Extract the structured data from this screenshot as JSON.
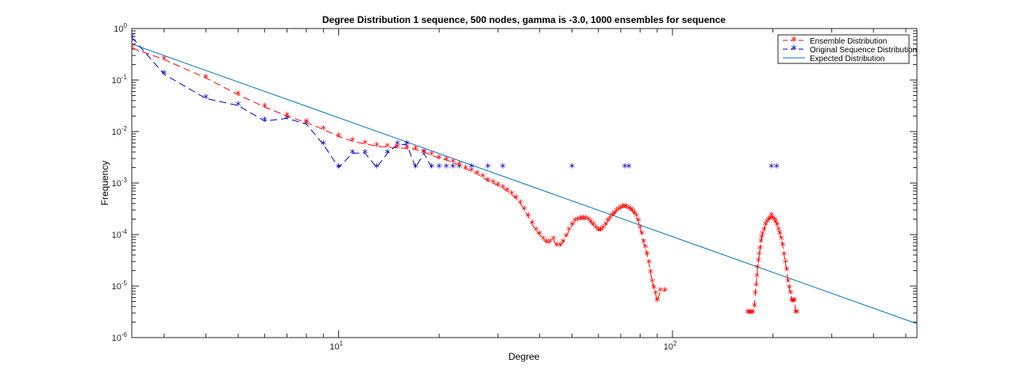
{
  "chart_data": {
    "type": "line",
    "title": "Degree Distribution 1 sequence, 500 nodes, gamma is -3.0, 1000 ensembles for sequence",
    "xlabel": "Degree",
    "ylabel": "Frequency",
    "xscale": "log",
    "yscale": "log",
    "xlim": [
      2.4,
      540
    ],
    "ylim": [
      1e-06,
      1
    ],
    "x_ticks": [
      {
        "value": 10,
        "base": "10",
        "exp": "1"
      },
      {
        "value": 100,
        "base": "10",
        "exp": "2"
      }
    ],
    "y_ticks": [
      {
        "value": 1,
        "base": "10",
        "exp": "0"
      },
      {
        "value": 0.1,
        "base": "10",
        "exp": "-1"
      },
      {
        "value": 0.01,
        "base": "10",
        "exp": "-2"
      },
      {
        "value": 0.001,
        "base": "10",
        "exp": "-3"
      },
      {
        "value": 0.0001,
        "base": "10",
        "exp": "-4"
      },
      {
        "value": 1e-05,
        "base": "10",
        "exp": "-5"
      },
      {
        "value": 1e-06,
        "base": "10",
        "exp": "-6"
      }
    ],
    "legend_position": "top-right",
    "grid": false,
    "series": [
      {
        "name": "Ensemble Distribution",
        "color": "#ff0000",
        "line": "dashed",
        "marker": "star",
        "segments": [
          [
            [
              2.4,
              0.42
            ],
            [
              3,
              0.25
            ],
            [
              4,
              0.11
            ],
            [
              5,
              0.052
            ],
            [
              6,
              0.03
            ],
            [
              7,
              0.02
            ],
            [
              8,
              0.015
            ],
            [
              9,
              0.011
            ],
            [
              10,
              0.008
            ],
            [
              11,
              0.0065
            ],
            [
              12,
              0.0058
            ],
            [
              13,
              0.0052
            ],
            [
              14,
              0.005
            ],
            [
              15,
              0.0048
            ],
            [
              16,
              0.0047
            ],
            [
              17,
              0.0045
            ],
            [
              18,
              0.004
            ],
            [
              19,
              0.0035
            ],
            [
              20,
              0.003
            ],
            [
              21,
              0.0028
            ],
            [
              22,
              0.0025
            ],
            [
              23,
              0.0022
            ],
            [
              24,
              0.0019
            ],
            [
              25,
              0.0017
            ],
            [
              26,
              0.0015
            ],
            [
              27,
              0.0013
            ],
            [
              28,
              0.0011
            ],
            [
              29,
              0.001
            ],
            [
              30,
              0.0009
            ],
            [
              31,
              0.0008
            ],
            [
              32,
              0.0007
            ],
            [
              33,
              0.0006
            ],
            [
              34,
              0.0005
            ],
            [
              35,
              0.0004
            ],
            [
              36,
              0.0003
            ],
            [
              37,
              0.00022
            ],
            [
              38,
              0.00016
            ],
            [
              39,
              0.00012
            ],
            [
              40,
              0.0001
            ],
            [
              41,
              8e-05
            ],
            [
              42,
              7e-05
            ],
            [
              43,
              7e-05
            ],
            [
              44,
              8e-05
            ],
            [
              45,
              6e-05
            ],
            [
              46,
              6e-05
            ],
            [
              47,
              7e-05
            ],
            [
              48,
              9e-05
            ],
            [
              49,
              0.00012
            ],
            [
              50,
              0.00015
            ],
            [
              51,
              0.00018
            ],
            [
              52,
              0.00019
            ],
            [
              53,
              0.0002
            ],
            [
              54,
              0.0002
            ],
            [
              55,
              0.0002
            ],
            [
              56,
              0.00019
            ],
            [
              57,
              0.00017
            ],
            [
              58,
              0.00015
            ],
            [
              59,
              0.00013
            ],
            [
              60,
              0.00012
            ],
            [
              61,
              0.00012
            ],
            [
              62,
              0.00013
            ],
            [
              63,
              0.00015
            ],
            [
              64,
              0.00018
            ],
            [
              65,
              0.0002
            ],
            [
              66,
              0.00023
            ],
            [
              67,
              0.00025
            ],
            [
              68,
              0.00028
            ],
            [
              69,
              0.0003
            ],
            [
              70,
              0.00032
            ],
            [
              71,
              0.00034
            ],
            [
              72,
              0.00034
            ],
            [
              73,
              0.00033
            ],
            [
              74,
              0.00031
            ],
            [
              75,
              0.0003
            ],
            [
              76,
              0.00028
            ],
            [
              77,
              0.00025
            ],
            [
              78,
              0.00022
            ],
            [
              79,
              0.00018
            ],
            [
              80,
              0.00013
            ],
            [
              81,
              0.0001
            ],
            [
              82,
              7e-05
            ],
            [
              83,
              5.5e-05
            ],
            [
              84,
              4e-05
            ],
            [
              85,
              2.8e-05
            ],
            [
              86,
              1.8e-05
            ],
            [
              87,
              1.2e-05
            ],
            [
              88,
              9e-06
            ],
            [
              89,
              7e-06
            ],
            [
              90,
              5e-06
            ],
            [
              92,
              8e-06
            ],
            [
              95,
              8e-06
            ]
          ],
          [
            [
              168,
              3e-06
            ],
            [
              170,
              3e-06
            ],
            [
              172,
              3e-06
            ],
            [
              174,
              3e-06
            ],
            [
              176,
              4e-06
            ],
            [
              177,
              7e-06
            ],
            [
              178,
              1e-05
            ],
            [
              179,
              1.5e-05
            ],
            [
              180,
              2.2e-05
            ],
            [
              181,
              3e-05
            ],
            [
              182,
              4e-05
            ],
            [
              183,
              5.2e-05
            ],
            [
              184,
              7e-05
            ],
            [
              185,
              8.5e-05
            ],
            [
              186,
              0.0001
            ],
            [
              188,
              0.00012
            ],
            [
              190,
              0.00015
            ],
            [
              192,
              0.00017
            ],
            [
              194,
              0.00019
            ],
            [
              196,
              0.0002
            ],
            [
              198,
              0.00023
            ],
            [
              200,
              0.0002
            ],
            [
              202,
              0.00019
            ],
            [
              204,
              0.00017
            ],
            [
              206,
              0.00015
            ],
            [
              208,
              0.00012
            ],
            [
              210,
              0.0001
            ],
            [
              212,
              8e-05
            ],
            [
              214,
              6e-05
            ],
            [
              216,
              4e-05
            ],
            [
              218,
              2.8e-05
            ],
            [
              220,
              2e-05
            ],
            [
              222,
              1.2e-05
            ],
            [
              224,
              9e-06
            ],
            [
              226,
              7e-06
            ],
            [
              228,
              5e-06
            ],
            [
              230,
              5e-06
            ],
            [
              232,
              5e-06
            ],
            [
              234,
              3e-06
            ],
            [
              236,
              3e-06
            ]
          ]
        ]
      },
      {
        "name": "Original Sequence Distribution",
        "color": "#0000cc",
        "line": "dashed",
        "marker": "star",
        "segments": [
          [
            [
              2.4,
              0.68
            ],
            [
              3,
              0.13
            ],
            [
              4,
              0.044
            ],
            [
              5,
              0.032
            ],
            [
              6,
              0.016
            ],
            [
              7,
              0.018
            ],
            [
              8,
              0.014
            ],
            [
              9,
              0.0056
            ],
            [
              10,
              0.002
            ],
            [
              11,
              0.0038
            ],
            [
              12,
              0.0038
            ],
            [
              13,
              0.002
            ],
            [
              14,
              0.0038
            ],
            [
              15,
              0.0056
            ],
            [
              16,
              0.0056
            ],
            [
              17,
              0.002
            ],
            [
              18,
              0.0038
            ],
            [
              19,
              0.002
            ]
          ],
          [
            [
              20,
              0.002
            ]
          ],
          [
            [
              21,
              0.002
            ]
          ],
          [
            [
              22,
              0.002
            ]
          ],
          [
            [
              23,
              0.002
            ]
          ],
          [
            [
              25,
              0.002
            ]
          ],
          [
            [
              28,
              0.002
            ]
          ],
          [
            [
              31,
              0.002
            ]
          ],
          [
            [
              50,
              0.002
            ]
          ],
          [
            [
              72,
              0.002
            ]
          ],
          [
            [
              74,
              0.002
            ]
          ],
          [
            [
              198,
              0.002
            ]
          ],
          [
            [
              205,
              0.002
            ]
          ]
        ]
      },
      {
        "name": "Expected Distribution",
        "color": "#0072bd",
        "line": "solid",
        "marker": "none",
        "segments": [
          [
            [
              2.4,
              0.5
            ],
            [
              540,
              1.86e-06
            ]
          ]
        ]
      }
    ]
  }
}
